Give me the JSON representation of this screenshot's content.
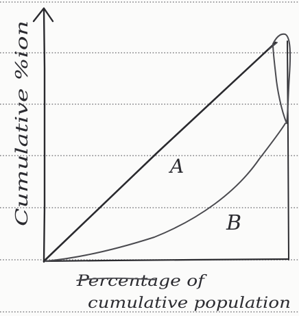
{
  "diagram": {
    "y_axis_label": "Cumulative %ion",
    "x_axis_label_line1": "Percentage of",
    "x_axis_label_line2": "cumulative population",
    "region_a_label": "A",
    "region_b_label": "B"
  },
  "colors": {
    "ink": "#2a2a2e",
    "ruled_lines": "#7c7c80",
    "paper": "#fbfbfa"
  }
}
